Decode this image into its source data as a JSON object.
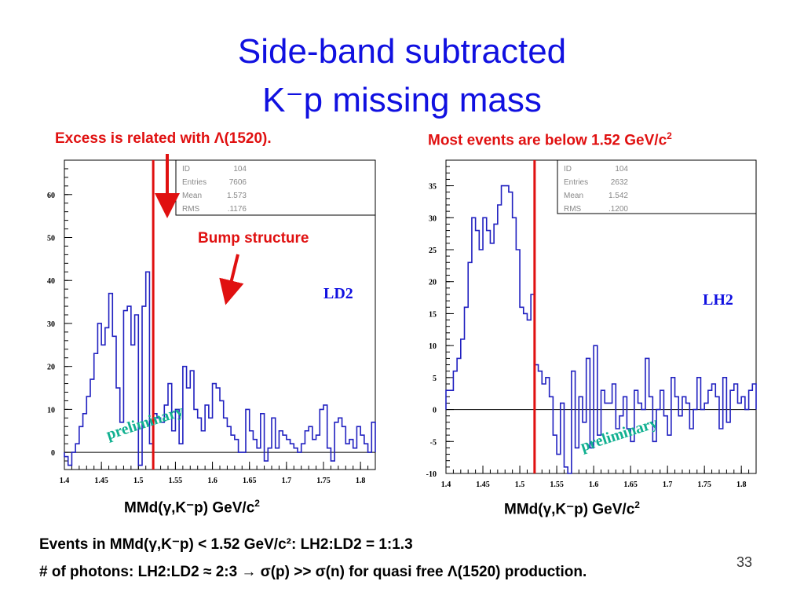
{
  "slide": {
    "title_line1": "Side-band subtracted",
    "title_line2": "K⁻p missing mass",
    "note_left": "Excess is related with Λ(1520).",
    "note_right": "Most events are below 1.52 GeV/c",
    "note_right_sup": "2",
    "bump_label": "Bump structure",
    "xlabel_left": "MMd(γ,K⁻p) GeV/c",
    "xlabel_right": "MMd(γ,K⁻p) GeV/c",
    "xlabel_sup": "2",
    "footer_line1": "Events in MMd(γ,K⁻p) < 1.52 GeV/c²:  LH2:LD2 = 1:1.3",
    "footer_line2": "# of photons: LH2:LD2 ≈ 2:3 → σ(p) >> σ(n) for quasi free Λ(1520) production.",
    "page_number": "33",
    "colors": {
      "title": "#1010e0",
      "notes": "#e01010",
      "histogram": "#2020c0",
      "preliminary": "#10b090",
      "cut_line": "#e01010"
    }
  },
  "chart_data": [
    {
      "type": "bar",
      "label": "LD2",
      "watermark": "preliminary",
      "stats": [
        {
          "key": "ID",
          "value": "104"
        },
        {
          "key": "Entries",
          "value": "7606"
        },
        {
          "key": "Mean",
          "value": "1.573"
        },
        {
          "key": "RMS",
          "value": ".1176"
        }
      ],
      "xlim": [
        1.4,
        1.82
      ],
      "ylim": [
        -4,
        68
      ],
      "xticks": [
        "1.4",
        "1.45",
        "1.5",
        "1.55",
        "1.6",
        "1.65",
        "1.7",
        "1.75",
        "1.8"
      ],
      "yticks": [
        "0",
        "10",
        "20",
        "30",
        "40",
        "50",
        "60"
      ],
      "cut_x": 1.52,
      "x_start": 1.4,
      "bin_width": 0.005,
      "values": [
        -1,
        -3,
        0,
        2,
        6,
        9,
        13,
        17,
        23,
        30,
        25,
        29,
        37,
        27,
        15,
        7,
        33,
        34,
        25,
        32,
        -3,
        34,
        42,
        2,
        9,
        8,
        7,
        11,
        16,
        5,
        10,
        2,
        20,
        15,
        19,
        10,
        8,
        5,
        11,
        8,
        16,
        15,
        12,
        8,
        6,
        4,
        3,
        0,
        0,
        10,
        5,
        3,
        1,
        9,
        -2,
        1,
        8,
        1,
        5,
        4,
        3,
        2,
        1,
        0,
        2,
        5,
        6,
        3,
        4,
        10,
        11,
        1,
        -2,
        7,
        8,
        6,
        2,
        3,
        1,
        6,
        4,
        2,
        0,
        7
      ]
    },
    {
      "type": "bar",
      "label": "LH2",
      "watermark": "preliminary",
      "stats": [
        {
          "key": "ID",
          "value": "104"
        },
        {
          "key": "Entries",
          "value": "2632"
        },
        {
          "key": "Mean",
          "value": "1.542"
        },
        {
          "key": "RMS",
          "value": ".1200"
        }
      ],
      "xlim": [
        1.4,
        1.82
      ],
      "ylim": [
        -10,
        39
      ],
      "xticks": [
        "1.4",
        "1.45",
        "1.5",
        "1.55",
        "1.6",
        "1.65",
        "1.7",
        "1.75",
        "1.8"
      ],
      "yticks": [
        "-10",
        "-5",
        "0",
        "5",
        "10",
        "15",
        "20",
        "25",
        "30",
        "35"
      ],
      "cut_x": 1.52,
      "x_start": 1.4,
      "bin_width": 0.005,
      "values": [
        3,
        3,
        6,
        8,
        11,
        16,
        23,
        30,
        28,
        25,
        30,
        28,
        26,
        29,
        32,
        35,
        35,
        34,
        30,
        25,
        16,
        15,
        14,
        18,
        7,
        6,
        4,
        5,
        2,
        -4,
        -7,
        1,
        -9,
        -10,
        6,
        -6,
        2,
        -2,
        8,
        -6,
        10,
        -4,
        3,
        1,
        1,
        4,
        -3,
        -1,
        2,
        -3,
        -5,
        3,
        1,
        0,
        8,
        2,
        -5,
        0,
        3,
        -1,
        -4,
        5,
        2,
        -1,
        2,
        1,
        -3,
        0,
        5,
        0,
        1,
        3,
        4,
        2,
        -3,
        5,
        -2,
        3,
        4,
        1,
        2,
        0,
        3,
        4
      ]
    }
  ]
}
